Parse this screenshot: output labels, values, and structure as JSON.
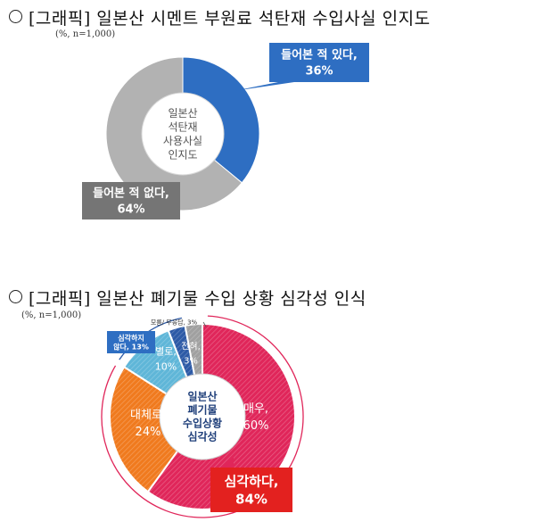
{
  "section1": {
    "title": "[그래픽] 일본산 시멘트 부원료 석탄재 수입사실 인지도",
    "note": "(%, n=1,000)"
  },
  "section2": {
    "title": "[그래픽] 일본산 폐기물 수입 상황 심각성 인식",
    "note": "(%, n=1,000)"
  },
  "chart_data": [
    {
      "type": "pie",
      "title": "[그래픽] 일본산 시멘트 부원료 석탄재 수입사실 인지도",
      "center_label": [
        "일본산",
        "석탄재",
        "사용사실",
        "인지도"
      ],
      "unit": "%",
      "slices": [
        {
          "label_lines": [
            "들어본 적 있다,",
            "36%"
          ],
          "value": 36,
          "color": "#2e6ec2"
        },
        {
          "label_lines": [
            "들어본 적 없다,",
            "64%"
          ],
          "value": 64,
          "color": "#b2b2b2"
        }
      ]
    },
    {
      "type": "pie",
      "title": "[그래픽] 일본산 폐기물 수입 상황 심각성 인식",
      "center_label": [
        "일본산",
        "폐기물",
        "수입상황",
        "심각성"
      ],
      "unit": "%",
      "slices": [
        {
          "label_lines": [
            "매우,",
            "60%"
          ],
          "value": 60,
          "color": "#e0265a"
        },
        {
          "label_lines": [
            "대체로,",
            "24%"
          ],
          "value": 24,
          "color": "#f07a1e"
        },
        {
          "label_lines": [
            "별로,",
            "10%"
          ],
          "value": 10,
          "color": "#5fb6d8"
        },
        {
          "label_lines": [
            "전혀,",
            "3%"
          ],
          "value": 3,
          "color": "#2d5aa6"
        },
        {
          "label_lines": [
            "모름/ 무응답, 3%"
          ],
          "value": 3,
          "color": "#a0a0a0"
        }
      ],
      "summary_serious": [
        "심각하다,",
        "84%"
      ],
      "summary_not_serious": [
        "심각하지",
        "않다, 13%"
      ]
    }
  ]
}
